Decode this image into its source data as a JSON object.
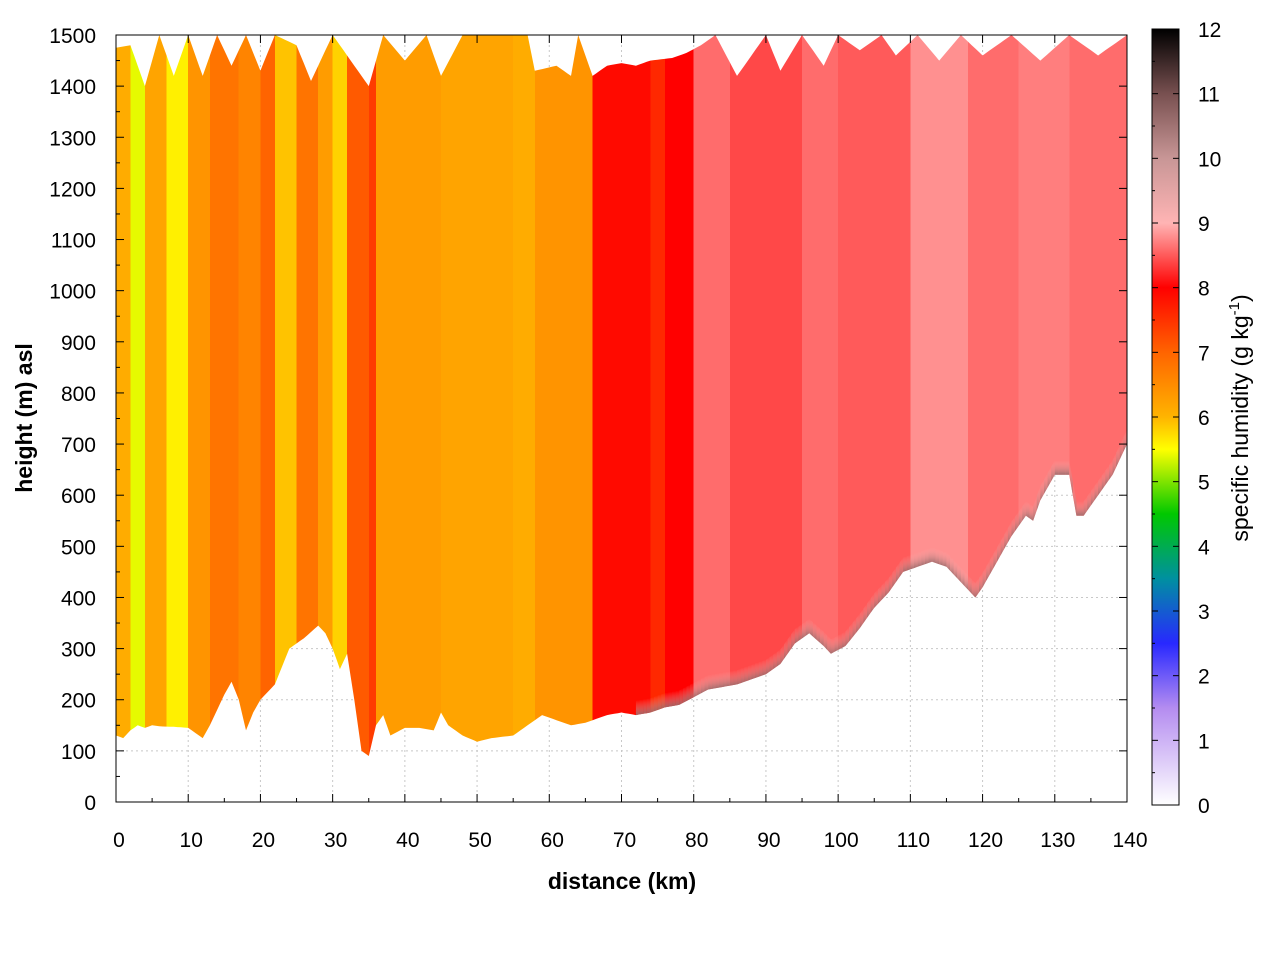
{
  "chart_data": {
    "type": "heatmap",
    "title": "",
    "xlabel": "distance (km)",
    "ylabel": "height (m) asl",
    "xlim": [
      0,
      140
    ],
    "ylim": [
      0,
      1500
    ],
    "x_ticks": [
      0,
      10,
      20,
      30,
      40,
      50,
      60,
      70,
      80,
      90,
      100,
      110,
      120,
      130,
      140
    ],
    "y_ticks": [
      0,
      100,
      200,
      300,
      400,
      500,
      600,
      700,
      800,
      900,
      1000,
      1100,
      1200,
      1300,
      1400,
      1500
    ],
    "grid": true,
    "colorbar": {
      "label_main": "specific humidity (g kg",
      "label_sup": "-1",
      "label_end": ")",
      "range": [
        0,
        12
      ],
      "ticks": [
        0,
        1,
        2,
        3,
        4,
        5,
        6,
        7,
        8,
        9,
        10,
        11,
        12
      ],
      "colormap": [
        {
          "v": 0,
          "c": "#ffffff"
        },
        {
          "v": 1.5,
          "c": "#b48cf0"
        },
        {
          "v": 2.5,
          "c": "#2828ff"
        },
        {
          "v": 3.5,
          "c": "#0090a0"
        },
        {
          "v": 4.5,
          "c": "#00c800"
        },
        {
          "v": 5.5,
          "c": "#ffff00"
        },
        {
          "v": 6.0,
          "c": "#ffb400"
        },
        {
          "v": 7.0,
          "c": "#ff6400"
        },
        {
          "v": 8.0,
          "c": "#ff0000"
        },
        {
          "v": 9.0,
          "c": "#ffb4b4"
        },
        {
          "v": 10.0,
          "c": "#c89696"
        },
        {
          "v": 11.0,
          "c": "#785050"
        },
        {
          "v": 12.0,
          "c": "#000000"
        }
      ]
    },
    "terrain_base_m": [
      [
        0,
        130
      ],
      [
        1,
        125
      ],
      [
        2,
        140
      ],
      [
        3,
        150
      ],
      [
        4,
        145
      ],
      [
        5,
        150
      ],
      [
        6,
        148
      ],
      [
        8,
        147
      ],
      [
        10,
        145
      ],
      [
        12,
        125
      ],
      [
        13,
        150
      ],
      [
        15,
        210
      ],
      [
        16,
        235
      ],
      [
        17,
        200
      ],
      [
        18,
        140
      ],
      [
        19,
        175
      ],
      [
        20,
        200
      ],
      [
        22,
        230
      ],
      [
        24,
        300
      ],
      [
        26,
        320
      ],
      [
        28,
        345
      ],
      [
        29,
        330
      ],
      [
        30,
        300
      ],
      [
        31,
        260
      ],
      [
        32,
        290
      ],
      [
        33,
        200
      ],
      [
        34,
        100
      ],
      [
        35,
        90
      ],
      [
        36,
        150
      ],
      [
        37,
        170
      ],
      [
        38,
        130
      ],
      [
        40,
        145
      ],
      [
        42,
        145
      ],
      [
        44,
        140
      ],
      [
        45,
        175
      ],
      [
        46,
        150
      ],
      [
        48,
        130
      ],
      [
        50,
        118
      ],
      [
        52,
        125
      ],
      [
        55,
        130
      ],
      [
        57,
        150
      ],
      [
        59,
        170
      ],
      [
        61,
        160
      ],
      [
        63,
        150
      ],
      [
        65,
        155
      ],
      [
        66,
        160
      ],
      [
        68,
        170
      ],
      [
        70,
        175
      ],
      [
        72,
        170
      ],
      [
        74,
        175
      ],
      [
        76,
        185
      ],
      [
        78,
        190
      ],
      [
        80,
        205
      ],
      [
        82,
        220
      ],
      [
        84,
        225
      ],
      [
        86,
        230
      ],
      [
        88,
        240
      ],
      [
        90,
        250
      ],
      [
        92,
        270
      ],
      [
        94,
        310
      ],
      [
        96,
        330
      ],
      [
        98,
        305
      ],
      [
        99,
        290
      ],
      [
        101,
        305
      ],
      [
        103,
        340
      ],
      [
        105,
        380
      ],
      [
        107,
        410
      ],
      [
        109,
        450
      ],
      [
        111,
        460
      ],
      [
        113,
        470
      ],
      [
        115,
        460
      ],
      [
        117,
        430
      ],
      [
        119,
        400
      ],
      [
        120,
        420
      ],
      [
        122,
        470
      ],
      [
        124,
        520
      ],
      [
        126,
        560
      ],
      [
        127,
        550
      ],
      [
        128,
        590
      ],
      [
        130,
        640
      ],
      [
        132,
        640
      ],
      [
        133,
        560
      ],
      [
        134,
        560
      ],
      [
        136,
        600
      ],
      [
        138,
        640
      ],
      [
        140,
        700
      ]
    ],
    "top_boundary_m": [
      [
        0,
        1475
      ],
      [
        2,
        1480
      ],
      [
        4,
        1400
      ],
      [
        6,
        1500
      ],
      [
        8,
        1420
      ],
      [
        10,
        1500
      ],
      [
        12,
        1420
      ],
      [
        14,
        1500
      ],
      [
        16,
        1440
      ],
      [
        18,
        1500
      ],
      [
        20,
        1430
      ],
      [
        22,
        1500
      ],
      [
        25,
        1480
      ],
      [
        27,
        1410
      ],
      [
        30,
        1500
      ],
      [
        33,
        1440
      ],
      [
        35,
        1400
      ],
      [
        37,
        1500
      ],
      [
        40,
        1450
      ],
      [
        43,
        1500
      ],
      [
        45,
        1420
      ],
      [
        48,
        1500
      ],
      [
        52,
        1500
      ],
      [
        57,
        1500
      ],
      [
        58,
        1430
      ],
      [
        61,
        1440
      ],
      [
        63,
        1420
      ],
      [
        64,
        1500
      ],
      [
        66,
        1420
      ],
      [
        68,
        1440
      ],
      [
        70,
        1445
      ],
      [
        72,
        1440
      ],
      [
        74,
        1450
      ],
      [
        77,
        1455
      ],
      [
        79,
        1465
      ],
      [
        81,
        1480
      ],
      [
        83,
        1500
      ],
      [
        86,
        1420
      ],
      [
        88,
        1460
      ],
      [
        90,
        1500
      ],
      [
        92,
        1430
      ],
      [
        95,
        1500
      ],
      [
        98,
        1440
      ],
      [
        100,
        1500
      ],
      [
        103,
        1470
      ],
      [
        106,
        1500
      ],
      [
        108,
        1460
      ],
      [
        111,
        1500
      ],
      [
        114,
        1450
      ],
      [
        117,
        1500
      ],
      [
        120,
        1460
      ],
      [
        124,
        1500
      ],
      [
        128,
        1450
      ],
      [
        132,
        1500
      ],
      [
        136,
        1460
      ],
      [
        140,
        1500
      ]
    ],
    "humidity_profile": [
      {
        "x0": 0,
        "x1": 2,
        "q": 6.1
      },
      {
        "x0": 2,
        "x1": 4,
        "q": 5.4
      },
      {
        "x0": 4,
        "x1": 7,
        "q": 6.2
      },
      {
        "x0": 7,
        "x1": 10,
        "q": 5.6
      },
      {
        "x0": 10,
        "x1": 13,
        "q": 6.4
      },
      {
        "x0": 13,
        "x1": 17,
        "q": 6.8
      },
      {
        "x0": 17,
        "x1": 20,
        "q": 6.6
      },
      {
        "x0": 20,
        "x1": 22,
        "q": 7.0
      },
      {
        "x0": 22,
        "x1": 25,
        "q": 5.9
      },
      {
        "x0": 25,
        "x1": 28,
        "q": 6.8
      },
      {
        "x0": 28,
        "x1": 30,
        "q": 6.3
      },
      {
        "x0": 30,
        "x1": 32,
        "q": 5.8
      },
      {
        "x0": 32,
        "x1": 35,
        "q": 7.1
      },
      {
        "x0": 35,
        "x1": 36,
        "q": 7.4
      },
      {
        "x0": 36,
        "x1": 45,
        "q": 6.3
      },
      {
        "x0": 45,
        "x1": 55,
        "q": 6.2
      },
      {
        "x0": 55,
        "x1": 58,
        "q": 6.1
      },
      {
        "x0": 58,
        "x1": 66,
        "q": 6.4
      },
      {
        "x0": 66,
        "x1": 74,
        "q": 7.9
      },
      {
        "x0": 74,
        "x1": 76,
        "q": 7.6
      },
      {
        "x0": 76,
        "x1": 80,
        "q": 8.0
      },
      {
        "x0": 80,
        "x1": 85,
        "q": 8.6
      },
      {
        "x0": 85,
        "x1": 95,
        "q": 8.4
      },
      {
        "x0": 95,
        "x1": 100,
        "q": 8.6
      },
      {
        "x0": 100,
        "x1": 110,
        "q": 8.5
      },
      {
        "x0": 110,
        "x1": 118,
        "q": 8.8
      },
      {
        "x0": 118,
        "x1": 125,
        "q": 8.6
      },
      {
        "x0": 125,
        "x1": 132,
        "q": 8.7
      },
      {
        "x0": 132,
        "x1": 140,
        "q": 8.6
      }
    ]
  }
}
